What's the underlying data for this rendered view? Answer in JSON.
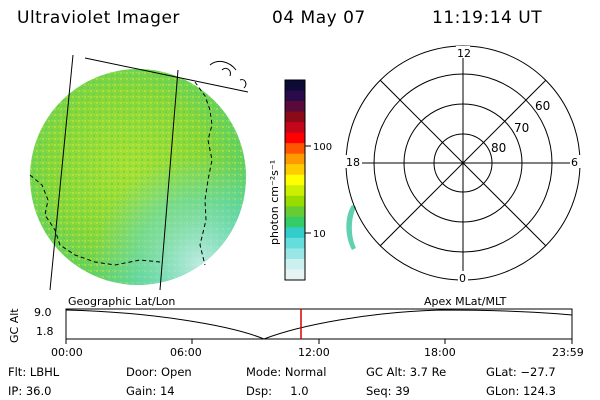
{
  "header": {
    "instrument": "Ultraviolet Imager",
    "date": "04 May 07",
    "time": "11:19:14 UT"
  },
  "colorbar": {
    "unit_label": "photon cm⁻²s⁻¹",
    "ticks": [
      "100",
      "10"
    ],
    "colors": [
      "#0b0b36",
      "#2a0a4a",
      "#5a0a3a",
      "#8a0a1a",
      "#c4061a",
      "#ff0000",
      "#ff5500",
      "#ff9900",
      "#ffcc00",
      "#ffff00",
      "#ccee00",
      "#99dd00",
      "#66cc33",
      "#33cc66",
      "#33cccc",
      "#66dddd",
      "#99e6e6",
      "#ccf0f0",
      "#e8f4f4"
    ]
  },
  "polar": {
    "mlt_labels": {
      "top": "12",
      "bottom": "0",
      "left": "18",
      "right": "6"
    },
    "lat_labels": [
      "60",
      "70",
      "80"
    ]
  },
  "timeline": {
    "left_label": "Geographic Lat/Lon",
    "right_label": "Apex MLat/MLT",
    "y_title": "GC Alt",
    "y_ticks": [
      "9.0",
      "1.8"
    ],
    "x_ticks": [
      "00:00",
      "06:00",
      "12:00",
      "18:00",
      "23:59"
    ],
    "current_time_color": "#d40000"
  },
  "footer": {
    "flt": "Flt: LBHL",
    "ip": "IP: 36.0",
    "door": "Door: Open",
    "gain": "Gain: 14",
    "mode": "Mode: Normal",
    "dsp": "Dsp:     1.0",
    "gcalt": "GC Alt: 3.7 Re",
    "seq": "Seq: 39",
    "glat": "GLat: −27.7",
    "glon": "GLon: 124.3"
  }
}
